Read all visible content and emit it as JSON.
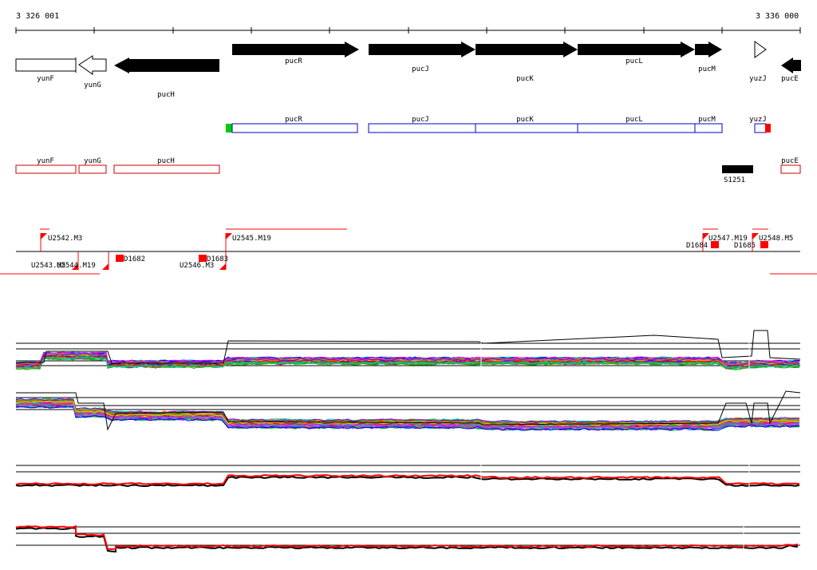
{
  "ruler": {
    "start": "3 326 001",
    "end": "3 336 000"
  },
  "genes": [
    {
      "name": "yunF",
      "strand": "-",
      "style": "outline"
    },
    {
      "name": "yunG",
      "strand": "-",
      "style": "outline"
    },
    {
      "name": "pucH",
      "strand": "-",
      "style": "filled"
    },
    {
      "name": "pucR",
      "strand": "+",
      "style": "filled"
    },
    {
      "name": "pucJ",
      "strand": "+",
      "style": "filled"
    },
    {
      "name": "pucK",
      "strand": "+",
      "style": "filled"
    },
    {
      "name": "pucL",
      "strand": "+",
      "style": "filled"
    },
    {
      "name": "pucM",
      "strand": "+",
      "style": "filled"
    },
    {
      "name": "yuzJ",
      "strand": "+",
      "style": "outline"
    },
    {
      "name": "pucE",
      "strand": "-",
      "style": "filled"
    }
  ],
  "forward_features": [
    "pucR",
    "pucJ",
    "pucK",
    "pucL",
    "pucM",
    "yuzJ"
  ],
  "reverse_features": [
    "yunF",
    "yunG",
    "pucH",
    "pucE"
  ],
  "special_feature": "S1251",
  "upper_markers": [
    "U2542.M3",
    "U2545.M19",
    "U2547.M19",
    "U2548.M5"
  ],
  "lower_markers": [
    "U2543.M5",
    "U2544.M19",
    "U2546.M3"
  ],
  "box_markers": [
    "D1682",
    "D1683",
    "D1684",
    "D1685"
  ],
  "colors": {
    "forward_box": "#0000cc",
    "reverse_box": "#cc0000",
    "marker": "#ff0000",
    "start": "#00cc00",
    "stop": "#ff0000"
  }
}
